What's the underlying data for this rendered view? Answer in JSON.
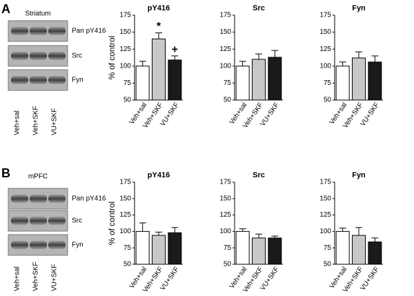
{
  "panels": [
    {
      "letter": "A",
      "region": "Striatum",
      "blot_labels": [
        "Pan pY416",
        "Src",
        "Fyn"
      ],
      "lanes": [
        "Veh+sal",
        "Veh+SKF",
        "VU+SKF"
      ]
    },
    {
      "letter": "B",
      "region": "mPFC",
      "blot_labels": [
        "Pan pY416",
        "Src",
        "Fyn"
      ],
      "lanes": [
        "Veh+sal",
        "Veh+SKF",
        "VU+SKF"
      ]
    }
  ],
  "chart_data": [
    {
      "type": "bar",
      "title": "pY416",
      "ylabel": "% of control",
      "categories": [
        "Veh+sal",
        "Veh+SKF",
        "VU+SKF"
      ],
      "values": [
        100,
        140,
        109
      ],
      "errors": [
        7,
        9,
        6
      ],
      "colors": [
        "#ffffff",
        "#c8c8c8",
        "#1a1a1a"
      ],
      "ylim": [
        50,
        175
      ],
      "yticks": [
        50,
        75,
        100,
        125,
        150,
        175
      ],
      "annotations": [
        {
          "text": "*",
          "category": "Veh+SKF"
        },
        {
          "text": "+",
          "category": "VU+SKF"
        }
      ]
    },
    {
      "type": "bar",
      "title": "Src",
      "categories": [
        "Veh+sal",
        "Veh+SKF",
        "VU+SKF"
      ],
      "values": [
        100,
        110,
        113
      ],
      "errors": [
        7,
        8,
        10
      ],
      "colors": [
        "#ffffff",
        "#c8c8c8",
        "#1a1a1a"
      ],
      "ylim": [
        50,
        175
      ],
      "yticks": [
        50,
        75,
        100,
        125,
        150,
        175
      ]
    },
    {
      "type": "bar",
      "title": "Fyn",
      "categories": [
        "Veh+sal",
        "Veh+SKF",
        "VU+SKF"
      ],
      "values": [
        100,
        112,
        106
      ],
      "errors": [
        6,
        9,
        9
      ],
      "colors": [
        "#ffffff",
        "#c8c8c8",
        "#1a1a1a"
      ],
      "ylim": [
        50,
        175
      ],
      "yticks": [
        50,
        75,
        100,
        125,
        150,
        175
      ]
    },
    {
      "type": "bar",
      "title": "pY416",
      "ylabel": "% of control",
      "categories": [
        "Veh+sal",
        "Veh+SKF",
        "VU+SKF"
      ],
      "values": [
        100,
        94,
        98
      ],
      "errors": [
        13,
        5,
        8
      ],
      "colors": [
        "#ffffff",
        "#c8c8c8",
        "#1a1a1a"
      ],
      "ylim": [
        50,
        175
      ],
      "yticks": [
        50,
        75,
        100,
        125,
        150,
        175
      ]
    },
    {
      "type": "bar",
      "title": "Src",
      "categories": [
        "Veh+sal",
        "Veh+SKF",
        "VU+SKF"
      ],
      "values": [
        100,
        90,
        90
      ],
      "errors": [
        4,
        6,
        3
      ],
      "colors": [
        "#ffffff",
        "#c8c8c8",
        "#1a1a1a"
      ],
      "ylim": [
        50,
        175
      ],
      "yticks": [
        50,
        75,
        100,
        125,
        150,
        175
      ]
    },
    {
      "type": "bar",
      "title": "Fyn",
      "categories": [
        "Veh+sal",
        "Veh+SKF",
        "VU+SKF"
      ],
      "values": [
        100,
        94,
        84
      ],
      "errors": [
        5,
        12,
        6
      ],
      "colors": [
        "#ffffff",
        "#c8c8c8",
        "#1a1a1a"
      ],
      "ylim": [
        50,
        175
      ],
      "yticks": [
        50,
        75,
        100,
        125,
        150,
        175
      ]
    }
  ]
}
